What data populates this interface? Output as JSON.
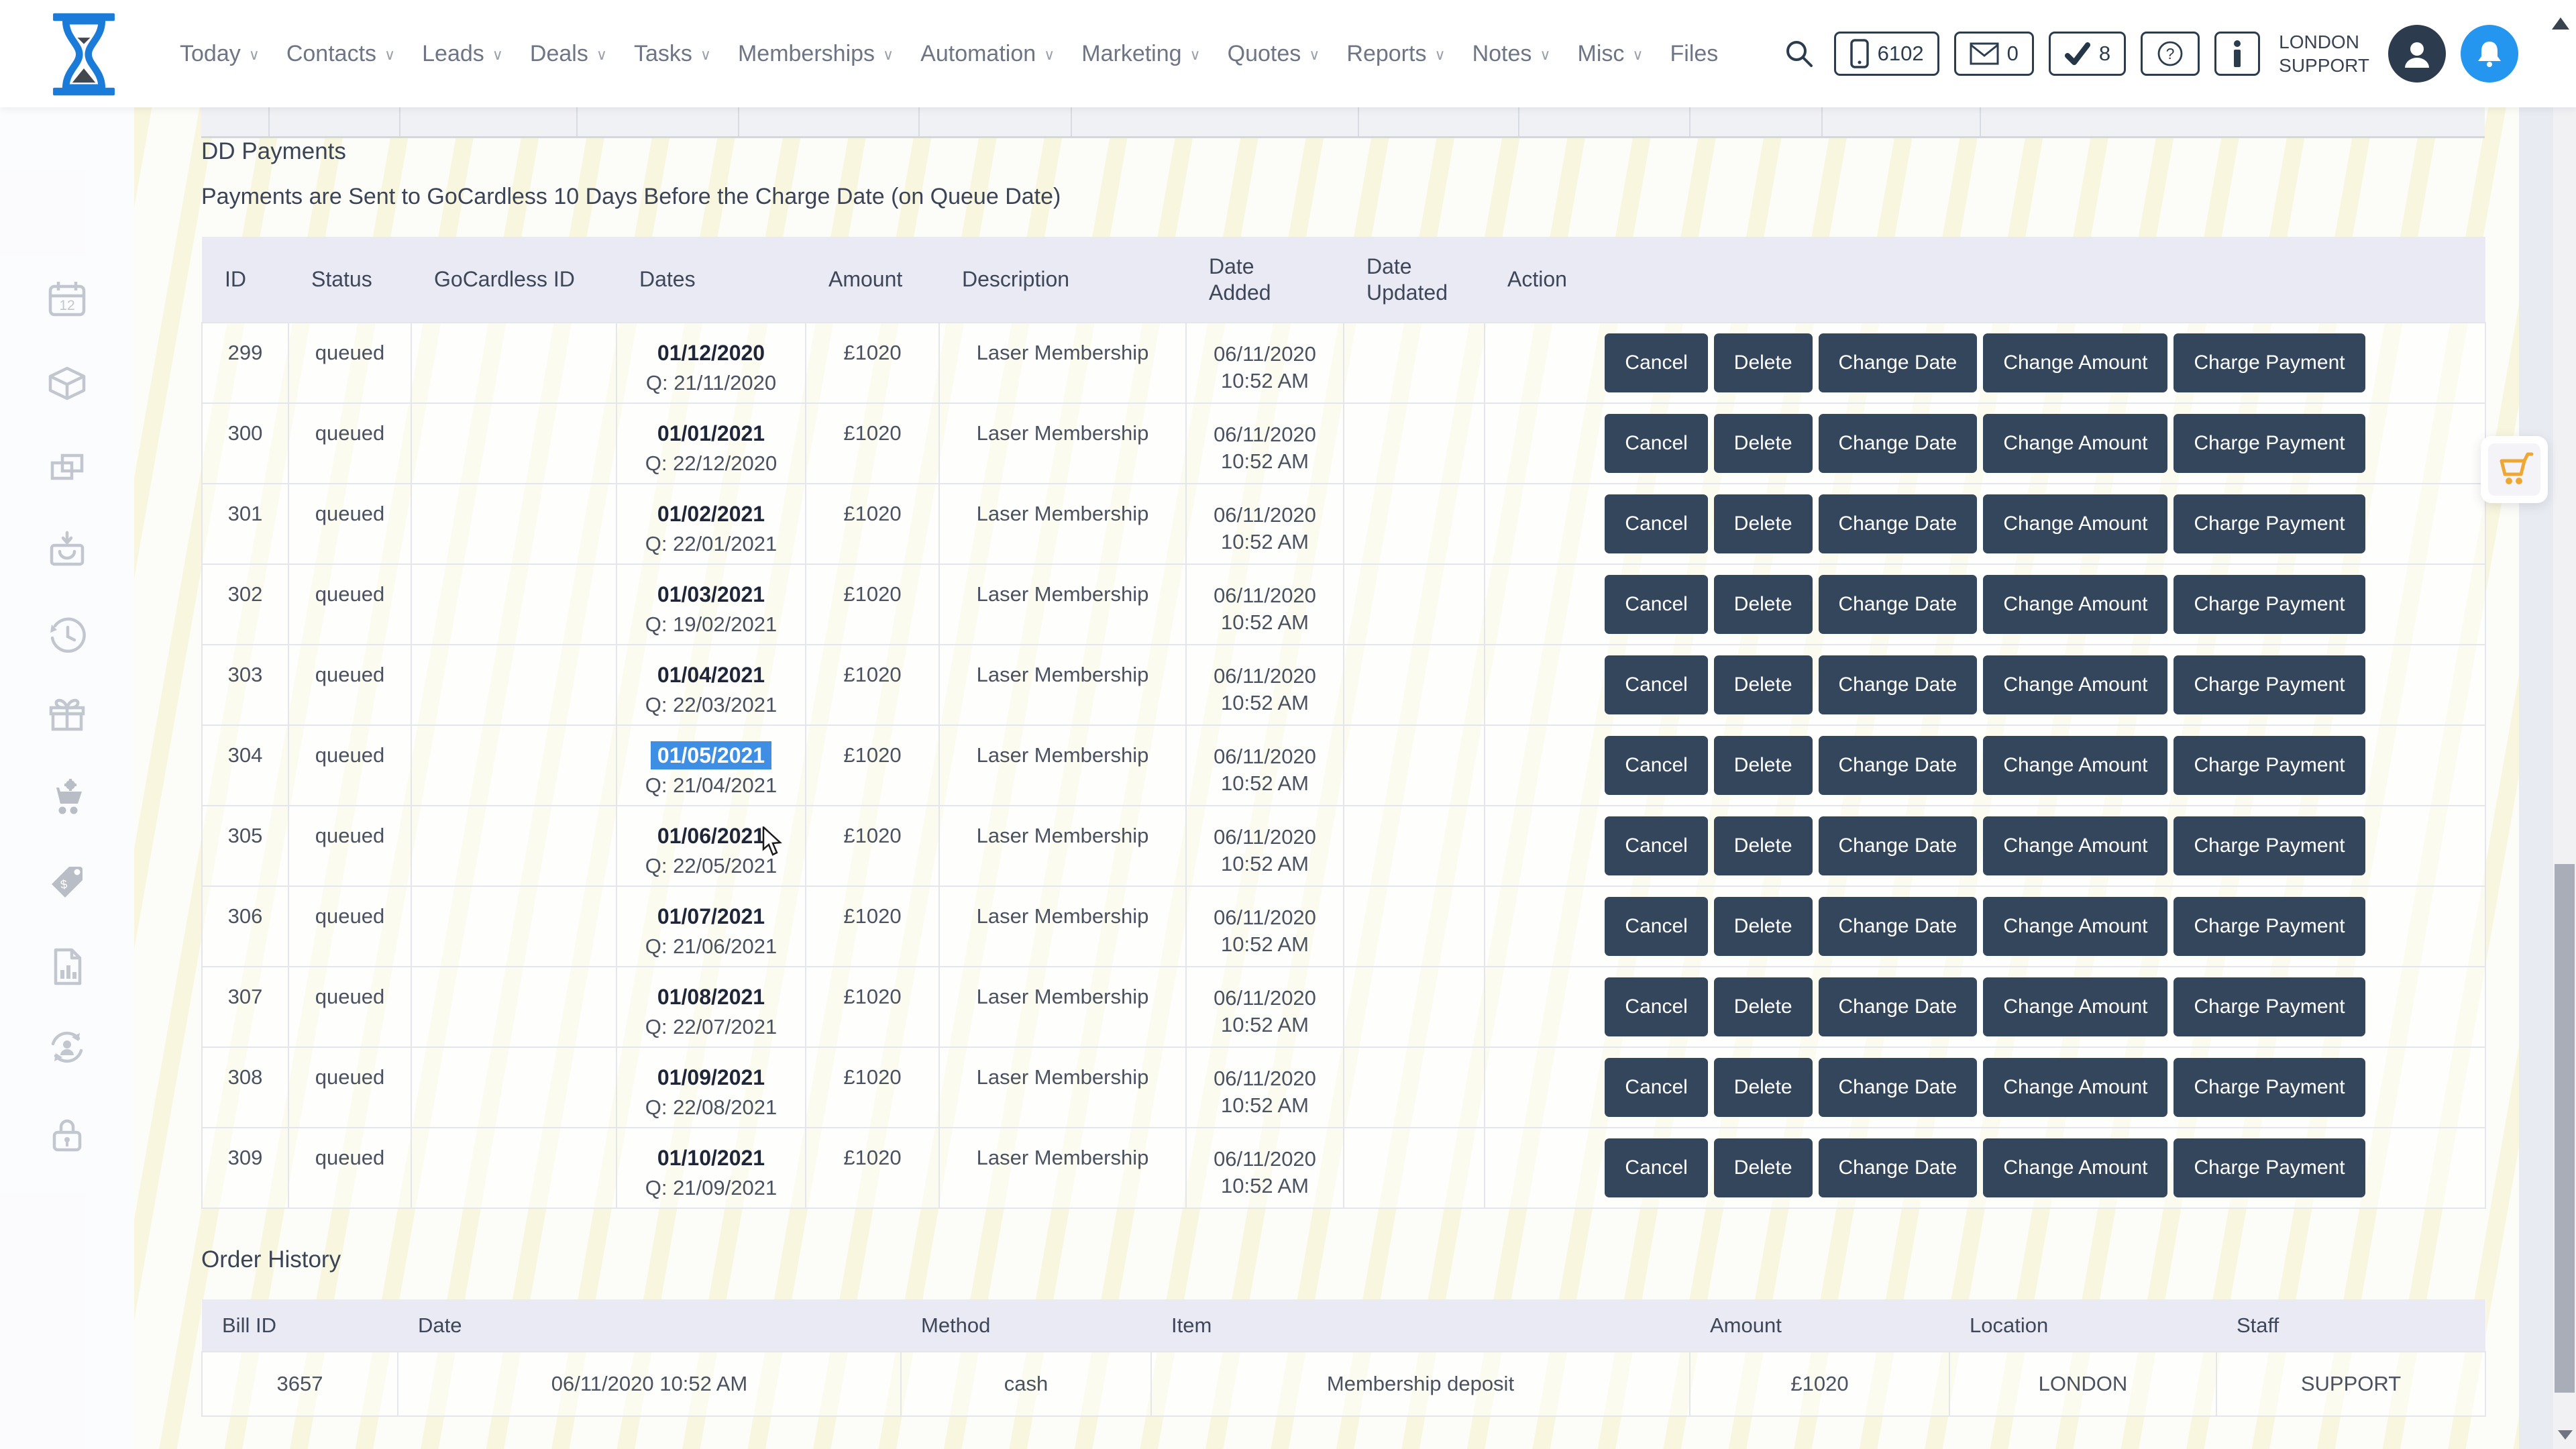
{
  "topnav": {
    "items": [
      {
        "label": "Today",
        "chevron": true
      },
      {
        "label": "Contacts",
        "chevron": true
      },
      {
        "label": "Leads",
        "chevron": true
      },
      {
        "label": "Deals",
        "chevron": true
      },
      {
        "label": "Tasks",
        "chevron": true
      },
      {
        "label": "Memberships",
        "chevron": true
      },
      {
        "label": "Automation",
        "chevron": true
      },
      {
        "label": "Marketing",
        "chevron": true
      },
      {
        "label": "Quotes",
        "chevron": true
      },
      {
        "label": "Reports",
        "chevron": true
      },
      {
        "label": "Notes",
        "chevron": true
      },
      {
        "label": "Misc",
        "chevron": true
      },
      {
        "label": "Files",
        "chevron": false
      }
    ],
    "phone_count": "6102",
    "mail_count": "0",
    "task_count": "8",
    "user_label": "LONDON\nSUPPORT",
    "icons": [
      "search-icon",
      "phone-icon",
      "mail-icon",
      "check-icon",
      "question-icon",
      "info-icon",
      "avatar-icon",
      "bell-icon"
    ],
    "colors": {
      "navy": "#2c3c4f",
      "bell_blue": "#2596ef",
      "logo_blue": "#1a7cd8"
    }
  },
  "sidebar": {
    "icons": [
      "calendar-icon",
      "package-icon",
      "copy-icon",
      "bag-download-icon",
      "history-icon",
      "gift-icon",
      "cart-gear-icon",
      "price-tag-icon",
      "report-icon",
      "user-sync-icon",
      "lock-icon"
    ]
  },
  "page": {
    "title": "DD Payments",
    "subtitle": "Payments are Sent to GoCardless 10 Days Before the Charge Date (on Queue Date)"
  },
  "dd_table": {
    "columns": [
      "ID",
      "Status",
      "GoCardless ID",
      "Dates",
      "Amount",
      "Description",
      "Date\nAdded",
      "Date\nUpdated",
      "Action"
    ],
    "action_buttons": [
      "Cancel",
      "Delete",
      "Change Date",
      "Change Amount",
      "Charge Payment"
    ],
    "selected_highlight_color": "#3e8ee3",
    "rows": [
      {
        "id": "299",
        "status": "queued",
        "gocardless_id": "",
        "charge_date": "01/12/2020",
        "queue_date": "Q: 21/11/2020",
        "amount": "£1020",
        "description": "Laser Membership",
        "date_added": "06/11/2020\n10:52 AM",
        "date_updated": "",
        "selected": false
      },
      {
        "id": "300",
        "status": "queued",
        "gocardless_id": "",
        "charge_date": "01/01/2021",
        "queue_date": "Q: 22/12/2020",
        "amount": "£1020",
        "description": "Laser Membership",
        "date_added": "06/11/2020\n10:52 AM",
        "date_updated": "",
        "selected": false
      },
      {
        "id": "301",
        "status": "queued",
        "gocardless_id": "",
        "charge_date": "01/02/2021",
        "queue_date": "Q: 22/01/2021",
        "amount": "£1020",
        "description": "Laser Membership",
        "date_added": "06/11/2020\n10:52 AM",
        "date_updated": "",
        "selected": false
      },
      {
        "id": "302",
        "status": "queued",
        "gocardless_id": "",
        "charge_date": "01/03/2021",
        "queue_date": "Q: 19/02/2021",
        "amount": "£1020",
        "description": "Laser Membership",
        "date_added": "06/11/2020\n10:52 AM",
        "date_updated": "",
        "selected": false
      },
      {
        "id": "303",
        "status": "queued",
        "gocardless_id": "",
        "charge_date": "01/04/2021",
        "queue_date": "Q: 22/03/2021",
        "amount": "£1020",
        "description": "Laser Membership",
        "date_added": "06/11/2020\n10:52 AM",
        "date_updated": "",
        "selected": false
      },
      {
        "id": "304",
        "status": "queued",
        "gocardless_id": "",
        "charge_date": "01/05/2021",
        "queue_date": "Q: 21/04/2021",
        "amount": "£1020",
        "description": "Laser Membership",
        "date_added": "06/11/2020\n10:52 AM",
        "date_updated": "",
        "selected": true
      },
      {
        "id": "305",
        "status": "queued",
        "gocardless_id": "",
        "charge_date": "01/06/2021",
        "queue_date": "Q: 22/05/2021",
        "amount": "£1020",
        "description": "Laser Membership",
        "date_added": "06/11/2020\n10:52 AM",
        "date_updated": "",
        "selected": false
      },
      {
        "id": "306",
        "status": "queued",
        "gocardless_id": "",
        "charge_date": "01/07/2021",
        "queue_date": "Q: 21/06/2021",
        "amount": "£1020",
        "description": "Laser Membership",
        "date_added": "06/11/2020\n10:52 AM",
        "date_updated": "",
        "selected": false
      },
      {
        "id": "307",
        "status": "queued",
        "gocardless_id": "",
        "charge_date": "01/08/2021",
        "queue_date": "Q: 22/07/2021",
        "amount": "£1020",
        "description": "Laser Membership",
        "date_added": "06/11/2020\n10:52 AM",
        "date_updated": "",
        "selected": false
      },
      {
        "id": "308",
        "status": "queued",
        "gocardless_id": "",
        "charge_date": "01/09/2021",
        "queue_date": "Q: 22/08/2021",
        "amount": "£1020",
        "description": "Laser Membership",
        "date_added": "06/11/2020\n10:52 AM",
        "date_updated": "",
        "selected": false
      },
      {
        "id": "309",
        "status": "queued",
        "gocardless_id": "",
        "charge_date": "01/10/2021",
        "queue_date": "Q: 21/09/2021",
        "amount": "£1020",
        "description": "Laser Membership",
        "date_added": "06/11/2020\n10:52 AM",
        "date_updated": "",
        "selected": false
      }
    ]
  },
  "order_history": {
    "title": "Order History",
    "columns": [
      "Bill ID",
      "Date",
      "Method",
      "Item",
      "Amount",
      "Location",
      "Staff"
    ],
    "row": {
      "bill_id": "3657",
      "date": "06/11/2020 10:52 AM",
      "method": "cash",
      "item": "Membership deposit",
      "amount": "£1020",
      "location": "LONDON",
      "staff": "SUPPORT"
    }
  }
}
